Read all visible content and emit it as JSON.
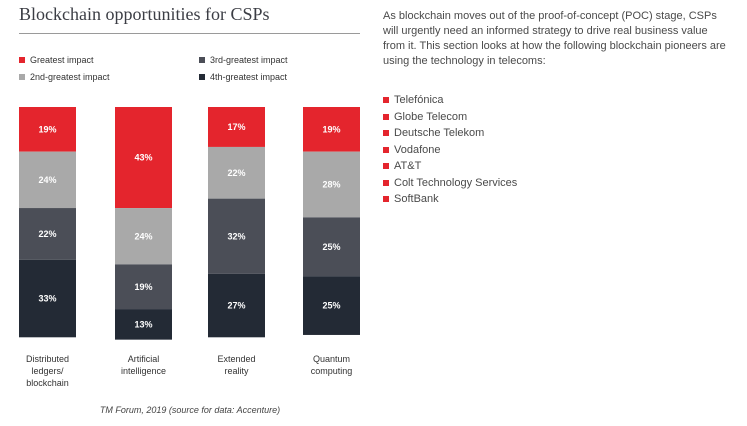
{
  "title": "Blockchain opportunities for CSPs",
  "colors": {
    "greatest": "#e4252d",
    "second": "#a9a9a9",
    "third": "#4b4e57",
    "fourth": "#232a35",
    "bullet": "#e4252d"
  },
  "chart_data": {
    "type": "bar",
    "stacked": true,
    "title": "Blockchain opportunities for CSPs",
    "legend": [
      "Greatest impact",
      "3rd-greatest impact",
      "2nd-greatest impact",
      "4th-greatest impact"
    ],
    "categories": [
      [
        "Distributed",
        "ledgers/",
        "blockchain"
      ],
      [
        "Artificial",
        "intelligence"
      ],
      [
        "Extended",
        "reality"
      ],
      [
        "Quantum",
        "computing"
      ]
    ],
    "series": [
      {
        "name": "Greatest impact",
        "key": "greatest",
        "values": [
          19,
          43,
          17,
          19
        ],
        "labels": [
          "19%",
          "43%",
          "17%",
          "19%"
        ]
      },
      {
        "name": "2nd-greatest impact",
        "key": "second",
        "values": [
          24,
          24,
          22,
          28
        ],
        "labels": [
          "24%",
          "24%",
          "22%",
          "28%"
        ]
      },
      {
        "name": "3rd-greatest impact",
        "key": "third",
        "values": [
          22,
          19,
          32,
          25
        ],
        "labels": [
          "22%",
          "19%",
          "32%",
          "25%"
        ]
      },
      {
        "name": "4th-greatest impact",
        "key": "fourth",
        "values": [
          33,
          13,
          27,
          25
        ],
        "labels": [
          "33%",
          "13%",
          "27%",
          "25%"
        ]
      }
    ],
    "ylim": [
      0,
      100
    ],
    "source": "TM Forum, 2019 (source for data: Accenture)"
  },
  "text": {
    "intro": "As blockchain moves out of the proof-of-concept (POC) stage, CSPs will urgently need an informed strategy to drive real business value from it. This section looks at how the following blockchain pioneers are using the technology in telecoms:",
    "pioneers": [
      "Telefónica",
      "Globe Telecom",
      "Deutsche Telekom",
      "Vodafone",
      "AT&T",
      "Colt Technology Services",
      "SoftBank"
    ]
  }
}
